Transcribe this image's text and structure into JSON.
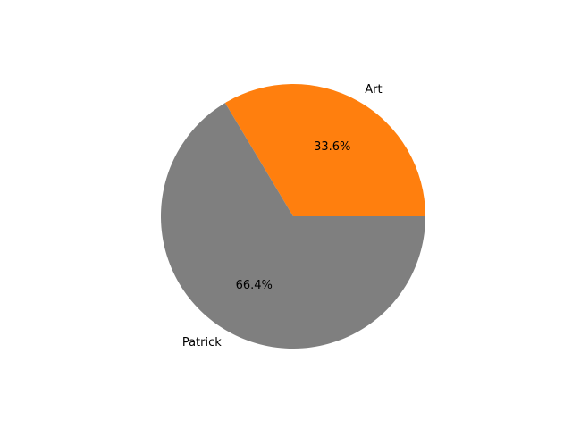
{
  "chart_data": {
    "type": "pie",
    "title": "",
    "start_angle_deg": 0,
    "direction": "counterclockwise",
    "slices": [
      {
        "label": "Art",
        "value": 33.6,
        "percent_label": "33.6%",
        "color": "#ff7f0e"
      },
      {
        "label": "Patrick",
        "value": 66.4,
        "percent_label": "66.4%",
        "color": "#7f7f7f"
      }
    ]
  }
}
